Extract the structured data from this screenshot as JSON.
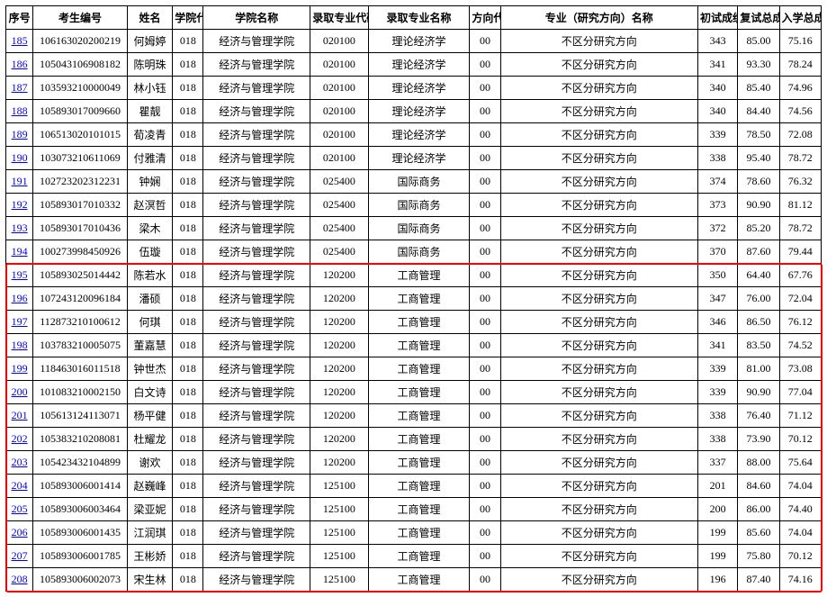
{
  "columns": [
    "序号",
    "考生编号",
    "姓名",
    "学院代码",
    "学院名称",
    "录取专业代码",
    "录取专业名称",
    "方向代码",
    "专业（研究方向）名称",
    "初试成绩",
    "复试总成绩",
    "入学总成绩"
  ],
  "rows": [
    {
      "seq": "185",
      "exam_no": "106163020200219",
      "name": "何姆婷",
      "dept_code": "018",
      "dept_name": "经济与管理学院",
      "major_code": "020100",
      "major_name": "理论经济学",
      "dir_code": "00",
      "dir_name": "不区分研究方向",
      "s1": "343",
      "s2": "85.00",
      "s3": "75.16"
    },
    {
      "seq": "186",
      "exam_no": "105043106908182",
      "name": "陈明珠",
      "dept_code": "018",
      "dept_name": "经济与管理学院",
      "major_code": "020100",
      "major_name": "理论经济学",
      "dir_code": "00",
      "dir_name": "不区分研究方向",
      "s1": "341",
      "s2": "93.30",
      "s3": "78.24"
    },
    {
      "seq": "187",
      "exam_no": "103593210000049",
      "name": "林小钰",
      "dept_code": "018",
      "dept_name": "经济与管理学院",
      "major_code": "020100",
      "major_name": "理论经济学",
      "dir_code": "00",
      "dir_name": "不区分研究方向",
      "s1": "340",
      "s2": "85.40",
      "s3": "74.96"
    },
    {
      "seq": "188",
      "exam_no": "105893017009660",
      "name": "瞿靓",
      "dept_code": "018",
      "dept_name": "经济与管理学院",
      "major_code": "020100",
      "major_name": "理论经济学",
      "dir_code": "00",
      "dir_name": "不区分研究方向",
      "s1": "340",
      "s2": "84.40",
      "s3": "74.56"
    },
    {
      "seq": "189",
      "exam_no": "106513020101015",
      "name": "荀凌青",
      "dept_code": "018",
      "dept_name": "经济与管理学院",
      "major_code": "020100",
      "major_name": "理论经济学",
      "dir_code": "00",
      "dir_name": "不区分研究方向",
      "s1": "339",
      "s2": "78.50",
      "s3": "72.08"
    },
    {
      "seq": "190",
      "exam_no": "103073210611069",
      "name": "付雅清",
      "dept_code": "018",
      "dept_name": "经济与管理学院",
      "major_code": "020100",
      "major_name": "理论经济学",
      "dir_code": "00",
      "dir_name": "不区分研究方向",
      "s1": "338",
      "s2": "95.40",
      "s3": "78.72"
    },
    {
      "seq": "191",
      "exam_no": "102723202312231",
      "name": "钟娴",
      "dept_code": "018",
      "dept_name": "经济与管理学院",
      "major_code": "025400",
      "major_name": "国际商务",
      "dir_code": "00",
      "dir_name": "不区分研究方向",
      "s1": "374",
      "s2": "78.60",
      "s3": "76.32"
    },
    {
      "seq": "192",
      "exam_no": "105893017010332",
      "name": "赵溟哲",
      "dept_code": "018",
      "dept_name": "经济与管理学院",
      "major_code": "025400",
      "major_name": "国际商务",
      "dir_code": "00",
      "dir_name": "不区分研究方向",
      "s1": "373",
      "s2": "90.90",
      "s3": "81.12"
    },
    {
      "seq": "193",
      "exam_no": "105893017010436",
      "name": "梁木",
      "dept_code": "018",
      "dept_name": "经济与管理学院",
      "major_code": "025400",
      "major_name": "国际商务",
      "dir_code": "00",
      "dir_name": "不区分研究方向",
      "s1": "372",
      "s2": "85.20",
      "s3": "78.72"
    },
    {
      "seq": "194",
      "exam_no": "100273998450926",
      "name": "伍璇",
      "dept_code": "018",
      "dept_name": "经济与管理学院",
      "major_code": "025400",
      "major_name": "国际商务",
      "dir_code": "00",
      "dir_name": "不区分研究方向",
      "s1": "370",
      "s2": "87.60",
      "s3": "79.44"
    },
    {
      "seq": "195",
      "exam_no": "105893025014442",
      "name": "陈若水",
      "dept_code": "018",
      "dept_name": "经济与管理学院",
      "major_code": "120200",
      "major_name": "工商管理",
      "dir_code": "00",
      "dir_name": "不区分研究方向",
      "s1": "350",
      "s2": "64.40",
      "s3": "67.76"
    },
    {
      "seq": "196",
      "exam_no": "107243120096184",
      "name": "潘硕",
      "dept_code": "018",
      "dept_name": "经济与管理学院",
      "major_code": "120200",
      "major_name": "工商管理",
      "dir_code": "00",
      "dir_name": "不区分研究方向",
      "s1": "347",
      "s2": "76.00",
      "s3": "72.04"
    },
    {
      "seq": "197",
      "exam_no": "112873210100612",
      "name": "何琪",
      "dept_code": "018",
      "dept_name": "经济与管理学院",
      "major_code": "120200",
      "major_name": "工商管理",
      "dir_code": "00",
      "dir_name": "不区分研究方向",
      "s1": "346",
      "s2": "86.50",
      "s3": "76.12"
    },
    {
      "seq": "198",
      "exam_no": "103783210005075",
      "name": "董嘉慧",
      "dept_code": "018",
      "dept_name": "经济与管理学院",
      "major_code": "120200",
      "major_name": "工商管理",
      "dir_code": "00",
      "dir_name": "不区分研究方向",
      "s1": "341",
      "s2": "83.50",
      "s3": "74.52"
    },
    {
      "seq": "199",
      "exam_no": "118463016011518",
      "name": "钟世杰",
      "dept_code": "018",
      "dept_name": "经济与管理学院",
      "major_code": "120200",
      "major_name": "工商管理",
      "dir_code": "00",
      "dir_name": "不区分研究方向",
      "s1": "339",
      "s2": "81.00",
      "s3": "73.08"
    },
    {
      "seq": "200",
      "exam_no": "101083210002150",
      "name": "白文诗",
      "dept_code": "018",
      "dept_name": "经济与管理学院",
      "major_code": "120200",
      "major_name": "工商管理",
      "dir_code": "00",
      "dir_name": "不区分研究方向",
      "s1": "339",
      "s2": "90.90",
      "s3": "77.04"
    },
    {
      "seq": "201",
      "exam_no": "105613124113071",
      "name": "杨平健",
      "dept_code": "018",
      "dept_name": "经济与管理学院",
      "major_code": "120200",
      "major_name": "工商管理",
      "dir_code": "00",
      "dir_name": "不区分研究方向",
      "s1": "338",
      "s2": "76.40",
      "s3": "71.12"
    },
    {
      "seq": "202",
      "exam_no": "105383210208081",
      "name": "杜耀龙",
      "dept_code": "018",
      "dept_name": "经济与管理学院",
      "major_code": "120200",
      "major_name": "工商管理",
      "dir_code": "00",
      "dir_name": "不区分研究方向",
      "s1": "338",
      "s2": "73.90",
      "s3": "70.12"
    },
    {
      "seq": "203",
      "exam_no": "105423432104899",
      "name": "谢欢",
      "dept_code": "018",
      "dept_name": "经济与管理学院",
      "major_code": "120200",
      "major_name": "工商管理",
      "dir_code": "00",
      "dir_name": "不区分研究方向",
      "s1": "337",
      "s2": "88.00",
      "s3": "75.64"
    },
    {
      "seq": "204",
      "exam_no": "105893006001414",
      "name": "赵巍峰",
      "dept_code": "018",
      "dept_name": "经济与管理学院",
      "major_code": "125100",
      "major_name": "工商管理",
      "dir_code": "00",
      "dir_name": "不区分研究方向",
      "s1": "201",
      "s2": "84.60",
      "s3": "74.04"
    },
    {
      "seq": "205",
      "exam_no": "105893006003464",
      "name": "梁亚妮",
      "dept_code": "018",
      "dept_name": "经济与管理学院",
      "major_code": "125100",
      "major_name": "工商管理",
      "dir_code": "00",
      "dir_name": "不区分研究方向",
      "s1": "200",
      "s2": "86.00",
      "s3": "74.40"
    },
    {
      "seq": "206",
      "exam_no": "105893006001435",
      "name": "江润琪",
      "dept_code": "018",
      "dept_name": "经济与管理学院",
      "major_code": "125100",
      "major_name": "工商管理",
      "dir_code": "00",
      "dir_name": "不区分研究方向",
      "s1": "199",
      "s2": "85.60",
      "s3": "74.04"
    },
    {
      "seq": "207",
      "exam_no": "105893006001785",
      "name": "王彬娇",
      "dept_code": "018",
      "dept_name": "经济与管理学院",
      "major_code": "125100",
      "major_name": "工商管理",
      "dir_code": "00",
      "dir_name": "不区分研究方向",
      "s1": "199",
      "s2": "75.80",
      "s3": "70.12"
    },
    {
      "seq": "208",
      "exam_no": "105893006002073",
      "name": "宋生林",
      "dept_code": "018",
      "dept_name": "经济与管理学院",
      "major_code": "125100",
      "major_name": "工商管理",
      "dir_code": "00",
      "dir_name": "不区分研究方向",
      "s1": "196",
      "s2": "87.40",
      "s3": "74.16"
    }
  ],
  "highlight": {
    "start_seq": "195",
    "end_seq": "208",
    "color": "#ff0000"
  },
  "style": {
    "link_color": "#0000ee",
    "border_color": "#000000",
    "font_family": "SimSun",
    "font_size_pt": 9,
    "header_font_weight": "bold",
    "background_color": "#ffffff"
  }
}
